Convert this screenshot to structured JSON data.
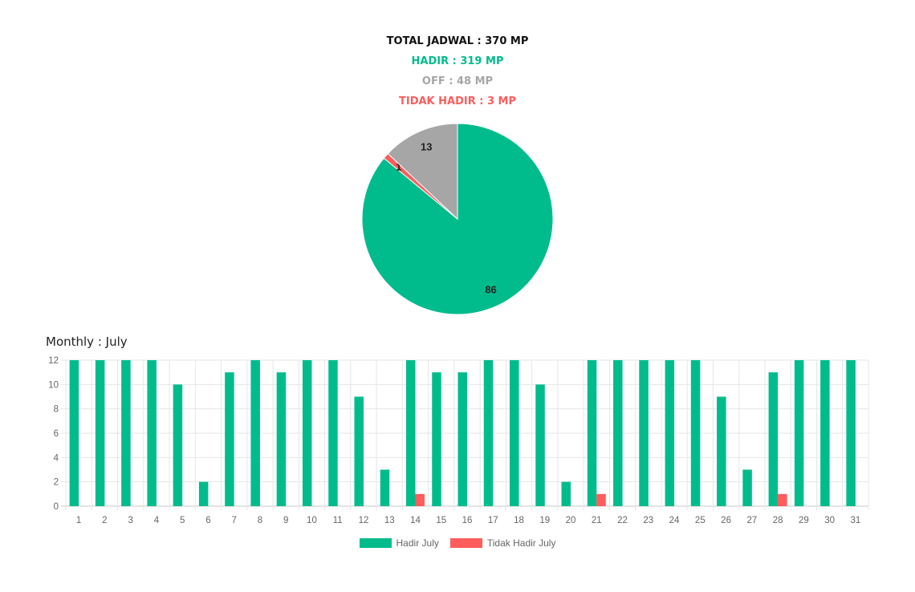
{
  "summary": {
    "total": "TOTAL JADWAL : 370 MP",
    "hadir": "HADIR : 319 MP",
    "off": "OFF : 48 MP",
    "tidak_hadir": "TIDAK HADIR : 3 MP"
  },
  "colors": {
    "hadir": "#00bc8c",
    "off": "#a6a6a6",
    "tidak_hadir": "#ff5c5c",
    "grid": "#e6e6e6"
  },
  "monthly_title": "Monthly : July",
  "chart_data": [
    {
      "type": "pie",
      "slices": [
        {
          "label": "Hadir",
          "value": 86,
          "color": "#00bc8c"
        },
        {
          "label": "Tidak Hadir",
          "value": 1,
          "color": "#ff5c5c"
        },
        {
          "label": "Off",
          "value": 13,
          "color": "#a6a6a6"
        }
      ]
    },
    {
      "type": "bar",
      "title": "Monthly : July",
      "categories": [
        "1",
        "2",
        "3",
        "4",
        "5",
        "6",
        "7",
        "8",
        "9",
        "10",
        "11",
        "12",
        "13",
        "14",
        "15",
        "16",
        "17",
        "18",
        "19",
        "20",
        "21",
        "22",
        "23",
        "24",
        "25",
        "26",
        "27",
        "28",
        "29",
        "30",
        "31"
      ],
      "series": [
        {
          "name": "Hadir July",
          "color": "#00bc8c",
          "values": [
            12,
            12,
            12,
            12,
            10,
            2,
            11,
            12,
            11,
            12,
            12,
            9,
            3,
            12,
            11,
            11,
            12,
            12,
            10,
            2,
            12,
            12,
            12,
            12,
            12,
            9,
            3,
            11,
            12,
            12,
            12
          ]
        },
        {
          "name": "Tidak Hadir July",
          "color": "#ff5c5c",
          "values": [
            0,
            0,
            0,
            0,
            0,
            0,
            0,
            0,
            0,
            0,
            0,
            0,
            0,
            1,
            0,
            0,
            0,
            0,
            0,
            0,
            1,
            0,
            0,
            0,
            0,
            0,
            0,
            1,
            0,
            0,
            0
          ]
        }
      ],
      "ylim": [
        0,
        12
      ],
      "yticks": [
        0,
        2,
        4,
        6,
        8,
        10,
        12
      ],
      "grid": true,
      "legend_position": "bottom"
    }
  ]
}
